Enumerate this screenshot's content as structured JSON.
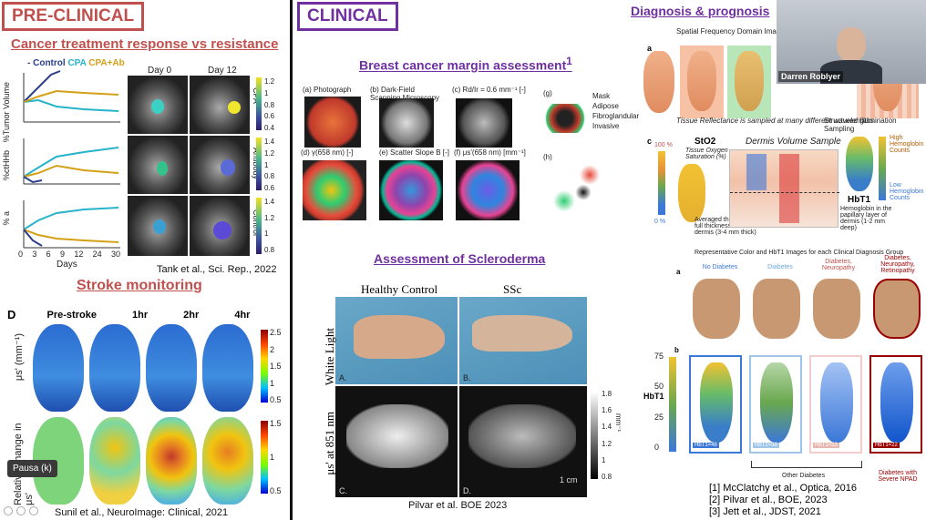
{
  "preclinical": {
    "title": "PRE-CLINICAL",
    "subtitle": "Cancer treatment response vs resistance",
    "legend": {
      "control": "Control",
      "cpa": "CPA",
      "cpa_ab": "CPA+Ab"
    },
    "ylabels": [
      "%Tumor Volume",
      "%ctHHb",
      "% a"
    ],
    "xlabel": "Days",
    "xticks": [
      "0",
      "3",
      "6",
      "9",
      "12",
      "24",
      "30"
    ],
    "day_labels": [
      "Day 0",
      "Day 12"
    ],
    "row_labels": [
      "CPA",
      "Antibody",
      "Control"
    ],
    "cbar_ticks": [
      [
        "1.2",
        "1",
        "0.8",
        "0.6",
        "0.4"
      ],
      [
        "1.4",
        "1.2",
        "1",
        "0.8",
        "0.6"
      ],
      [
        "1.4",
        "1.2",
        "1",
        "0.8"
      ]
    ],
    "citation": "Tank et al., Sci. Rep., 2022",
    "stroke_title": "Stroke monitoring",
    "panel_letter": "D",
    "stroke_cols": [
      "Pre-stroke",
      "1hr",
      "2hr",
      "4hr"
    ],
    "stroke_ylabel_top": "μs' (mm⁻¹)",
    "stroke_ylabel_bottom": "Relative change in μs'",
    "stroke_cbar_top": [
      "2.5",
      "2",
      "1.5",
      "1",
      "0.5"
    ],
    "stroke_cbar_bottom": [
      "1.5",
      "1",
      "0.5"
    ],
    "stroke_citation": "Sunil et al., NeuroImage: Clinical, 2021"
  },
  "clinical": {
    "title": "CLINICAL",
    "breast_title": "Breast cancer margin assessment",
    "breast_sup": "1",
    "breast_panels": [
      "(a) Photograph",
      "(b) Dark-Field Scanning Microscopy",
      "(c) Rd/Ir = 0.6 mm⁻¹ [-]",
      "(d) γ(658 nm) [-]",
      "(e) Scatter Slope B [-]",
      "(f) μs'(658 nm) [mm⁻¹]",
      "(g)",
      "(h)"
    ],
    "tissue_legend": [
      "Mask",
      "Adipose",
      "Fibroglandular",
      "Invasive"
    ],
    "scleroderma_title": "Assessment of Scleroderma",
    "scl_cols": [
      "Healthy Control",
      "SSc"
    ],
    "scl_rows": [
      "White Light",
      "μs' at 851 nm"
    ],
    "scl_letters": [
      "A.",
      "B.",
      "C.",
      "D."
    ],
    "scl_cbar": [
      "1.8",
      "1.6",
      "1.4",
      "1.2",
      "1",
      "0.8"
    ],
    "scl_cbar_unit": "mm⁻¹",
    "scl_scale": "1 cm",
    "scl_citation": "Pilvar et al. BOE 2023"
  },
  "diagnosis": {
    "title": "Diagnosis & prognosis",
    "panel_a": "a",
    "sfdi_title": "Spatial Frequency Domain Imaging",
    "tissue_reflectance": "Tissue Reflectance is sampled at many different wavelengths",
    "structured_illum": "Structured Illumination Sampling",
    "panel_c": "c",
    "sto2": "StO2",
    "sto2_desc": "Tissue Oxygen Saturation (%)",
    "sto2_100": "100 %",
    "sto2_0": "0 %",
    "sto2_avg": "Averaged through the full thickness of the dermis (3-4 mm thick)",
    "dermis_title": "Dermis Volume Sample",
    "hbt": "HbT1",
    "hbt_desc": "Hemoglobin in the papillary layer of dermis (1-2 mm deep)",
    "high_hb": "High Hemoglobin Counts",
    "low_hb": "Low Hemoglobin Counts",
    "rep_caption": "Representative Color and HbT1 Images for each Clinical Diagnosis Group",
    "panel_a2": "a",
    "panel_b": "b",
    "groups": [
      "No Diabetes",
      "Diabetes",
      "Diabetes, Neuropathy",
      "Diabetes, Neuropathy, Retinopathy"
    ],
    "hbt_values": [
      "HbT1=46",
      "HbT1=38",
      "HbT1=33",
      "HbT1=22"
    ],
    "hbt_axis": "HbT1",
    "hbt_ticks": [
      "75",
      "50",
      "25",
      "0"
    ],
    "other_diabetes": "Other Diabetes",
    "severe": "Diabetes with Severe NPAD",
    "refs": [
      "[1] McClatchy et al., Optica, 2016",
      "[2] Pilvar et al., BOE, 2023",
      "[3] Jett et al., JDST, 2021"
    ]
  },
  "video": {
    "speaker": "Darren Roblyer",
    "pause_tooltip": "Pausa (k)"
  },
  "colors": {
    "red": "#c0504d",
    "purple": "#7030a0"
  }
}
